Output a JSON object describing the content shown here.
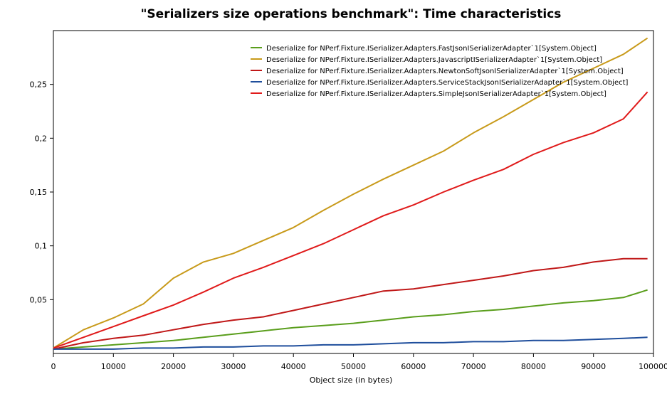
{
  "chart_data": {
    "type": "line",
    "title": "\"Serializers size operations benchmark\": Time characteristics",
    "xlabel": "Object size (in bytes)",
    "ylabel": "",
    "xlim": [
      0,
      100000
    ],
    "ylim": [
      0,
      0.3
    ],
    "x_ticks": [
      0,
      10000,
      20000,
      30000,
      40000,
      50000,
      60000,
      70000,
      80000,
      90000,
      100000
    ],
    "x_tick_labels": [
      "0",
      "10000",
      "20000",
      "30000",
      "40000",
      "50000",
      "60000",
      "70000",
      "80000",
      "90000",
      "100000"
    ],
    "y_ticks": [
      0.05,
      0.1,
      0.15,
      0.2,
      0.25
    ],
    "y_tick_labels": [
      "0,05",
      "0,1",
      "0,15",
      "0,2",
      "0,25"
    ],
    "grid": false,
    "legend_position": "top-right",
    "x": [
      0,
      5000,
      10000,
      15000,
      20000,
      25000,
      30000,
      35000,
      40000,
      45000,
      50000,
      55000,
      60000,
      65000,
      70000,
      75000,
      80000,
      85000,
      90000,
      95000,
      99000
    ],
    "series": [
      {
        "name": "Deserialize for NPerf.Fixture.ISerializer.Adapters.FastJsonISerializerAdapter`1[System.Object]",
        "color": "#5a9e1c",
        "values": [
          0.004,
          0.006,
          0.008,
          0.01,
          0.012,
          0.015,
          0.018,
          0.021,
          0.024,
          0.026,
          0.028,
          0.031,
          0.034,
          0.036,
          0.039,
          0.041,
          0.044,
          0.047,
          0.049,
          0.052,
          0.059
        ]
      },
      {
        "name": "Deserialize for NPerf.Fixture.ISerializer.Adapters.JavascriptISerializerAdapter`1[System.Object]",
        "color": "#c89a1a",
        "values": [
          0.005,
          0.022,
          0.033,
          0.046,
          0.07,
          0.085,
          0.093,
          0.105,
          0.117,
          0.133,
          0.148,
          0.162,
          0.175,
          0.188,
          0.205,
          0.22,
          0.236,
          0.252,
          0.265,
          0.278,
          0.293
        ]
      },
      {
        "name": "Deserialize for NPerf.Fixture.ISerializer.Adapters.NewtonSoftJsonISerializerAdapter`1[System.Object]",
        "color": "#c01818",
        "values": [
          0.004,
          0.01,
          0.014,
          0.017,
          0.022,
          0.027,
          0.031,
          0.034,
          0.04,
          0.046,
          0.052,
          0.058,
          0.06,
          0.064,
          0.068,
          0.072,
          0.077,
          0.08,
          0.085,
          0.088,
          0.088
        ]
      },
      {
        "name": "Deserialize for NPerf.Fixture.ISerializer.Adapters.ServiceStackJsonISerializerAdapter`1[System.Object]",
        "color": "#1f4e9c",
        "values": [
          0.004,
          0.004,
          0.004,
          0.005,
          0.005,
          0.006,
          0.006,
          0.007,
          0.007,
          0.008,
          0.008,
          0.009,
          0.01,
          0.01,
          0.011,
          0.011,
          0.012,
          0.012,
          0.013,
          0.014,
          0.015
        ]
      },
      {
        "name": "Deserialize for NPerf.Fixture.ISerializer.Adapters.SimpleJsonISerializerAdapter`1[System.Object]",
        "color": "#e01a1a",
        "values": [
          0.005,
          0.015,
          0.025,
          0.035,
          0.045,
          0.057,
          0.07,
          0.08,
          0.091,
          0.102,
          0.115,
          0.128,
          0.138,
          0.15,
          0.161,
          0.171,
          0.185,
          0.196,
          0.205,
          0.218,
          0.243
        ]
      }
    ]
  }
}
